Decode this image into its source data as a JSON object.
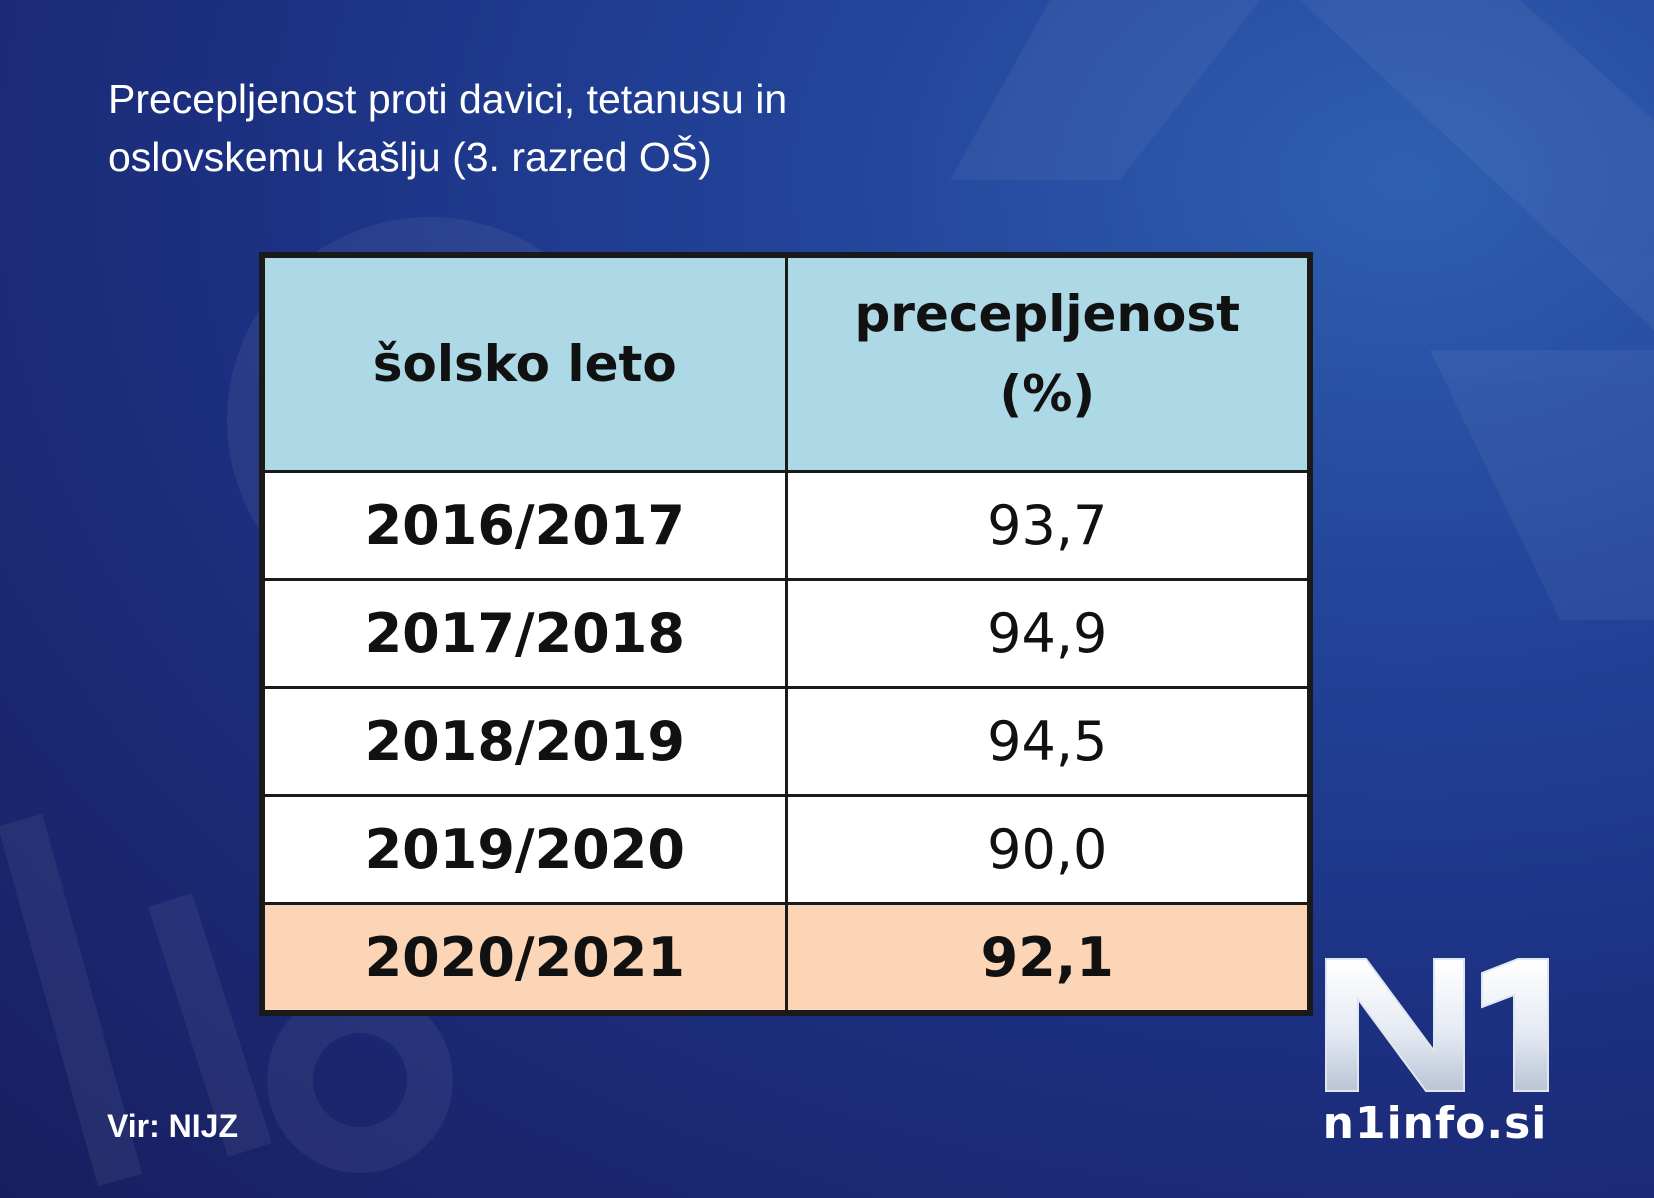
{
  "title": {
    "line1": "Precepljenost proti davici, tetanusu in",
    "line2": "oslovskemu kašlju (3. razred OŠ)"
  },
  "table": {
    "headers": {
      "col1": "šolsko leto",
      "col2_line1": "precepljenost",
      "col2_line2": "(%)"
    },
    "rows": [
      {
        "year": "2016/2017",
        "value": "93,7"
      },
      {
        "year": "2017/2018",
        "value": "94,9"
      },
      {
        "year": "2018/2019",
        "value": "94,5"
      },
      {
        "year": "2019/2020",
        "value": "90,0"
      },
      {
        "year": "2020/2021",
        "value": "92,1"
      }
    ],
    "highlight_row_index": 4,
    "colors": {
      "header_bg": "#add8e6",
      "highlight_bg": "#fbd5b5",
      "row_bg": "#ffffff",
      "border": "#1a1a1a"
    }
  },
  "chart_data": {
    "type": "table",
    "title": "Precepljenost proti davici, tetanusu in oslovskemu kašlju (3. razred OŠ)",
    "columns": [
      "šolsko leto",
      "precepljenost (%)"
    ],
    "categories": [
      "2016/2017",
      "2017/2018",
      "2018/2019",
      "2019/2020",
      "2020/2021"
    ],
    "values": [
      93.7,
      94.9,
      94.5,
      90.0,
      92.1
    ]
  },
  "source": "Vir: NIJZ",
  "logo": {
    "mark": "N1",
    "site": "n1info.si"
  },
  "colors": {
    "background": "#1c2f80",
    "text": "#ffffff"
  }
}
